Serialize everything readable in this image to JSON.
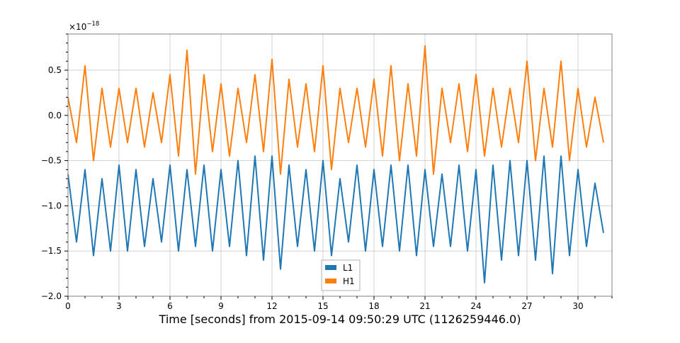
{
  "chart_data": {
    "type": "line",
    "title": "",
    "xlabel": "Time [seconds] from 2015-09-14 09:50:29 UTC (1126259446.0)",
    "ylabel": "",
    "y_multiplier": "×10",
    "y_multiplier_exp": "−18",
    "xlim": [
      0,
      32
    ],
    "ylim": [
      -2.0,
      0.9
    ],
    "xticks": [
      0,
      3,
      6,
      9,
      12,
      15,
      18,
      21,
      24,
      27,
      30
    ],
    "xtick_labels": [
      "0",
      "3",
      "6",
      "9",
      "12",
      "15",
      "18",
      "21",
      "24",
      "27",
      "30"
    ],
    "yticks": [
      -2.0,
      -1.5,
      -1.0,
      -0.5,
      0.0,
      0.5
    ],
    "ytick_labels": [
      "−2.0",
      "−1.5",
      "−1.0",
      "−0.5",
      "0.0",
      "0.5"
    ],
    "grid": true,
    "legend_position": "bottom-center",
    "x_step": 0.5,
    "series": [
      {
        "name": "L1",
        "color": "#1f77b4",
        "values": [
          -0.65,
          -1.4,
          -0.6,
          -1.55,
          -0.7,
          -1.5,
          -0.55,
          -1.5,
          -0.6,
          -1.45,
          -0.7,
          -1.4,
          -0.55,
          -1.5,
          -0.6,
          -1.45,
          -0.55,
          -1.5,
          -0.6,
          -1.45,
          -0.5,
          -1.55,
          -0.45,
          -1.6,
          -0.45,
          -1.7,
          -0.55,
          -1.45,
          -0.6,
          -1.5,
          -0.5,
          -1.55,
          -0.7,
          -1.4,
          -0.55,
          -1.5,
          -0.6,
          -1.45,
          -0.55,
          -1.5,
          -0.55,
          -1.55,
          -0.6,
          -1.45,
          -0.65,
          -1.45,
          -0.55,
          -1.5,
          -0.6,
          -1.85,
          -0.55,
          -1.6,
          -0.5,
          -1.55,
          -0.5,
          -1.6,
          -0.45,
          -1.75,
          -0.45,
          -1.55,
          -0.6,
          -1.45,
          -0.75,
          -1.3
        ]
      },
      {
        "name": "H1",
        "color": "#ff7f0e",
        "values": [
          0.2,
          -0.3,
          0.55,
          -0.5,
          0.3,
          -0.35,
          0.3,
          -0.3,
          0.3,
          -0.35,
          0.25,
          -0.3,
          0.45,
          -0.45,
          0.72,
          -0.65,
          0.45,
          -0.4,
          0.35,
          -0.45,
          0.3,
          -0.3,
          0.45,
          -0.4,
          0.62,
          -0.65,
          0.4,
          -0.35,
          0.35,
          -0.4,
          0.55,
          -0.6,
          0.3,
          -0.3,
          0.3,
          -0.35,
          0.4,
          -0.45,
          0.55,
          -0.5,
          0.35,
          -0.45,
          0.77,
          -0.65,
          0.3,
          -0.3,
          0.35,
          -0.4,
          0.45,
          -0.45,
          0.3,
          -0.35,
          0.3,
          -0.3,
          0.6,
          -0.5,
          0.3,
          -0.35,
          0.6,
          -0.5,
          0.3,
          -0.35,
          0.2,
          -0.3
        ]
      }
    ]
  }
}
